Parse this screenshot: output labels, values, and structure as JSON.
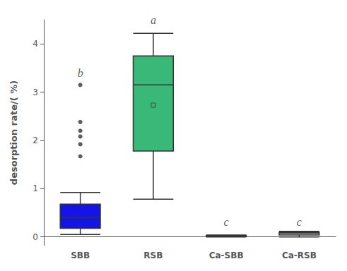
{
  "chart_data": {
    "type": "box",
    "categories": [
      "SBB",
      "RSB",
      "Ca-SBB",
      "Ca-RSB"
    ],
    "ylabel": "desorption rate/( %)",
    "ylim": [
      -0.18,
      4.5
    ],
    "yticks": [
      0,
      1,
      2,
      3,
      4
    ],
    "grid": false,
    "colors": [
      "#1414e6",
      "#3ab878",
      "white",
      "white"
    ],
    "whislo": [
      0.05,
      0.78,
      0.0,
      0.0
    ],
    "q1": [
      0.18,
      1.78,
      0.01,
      0.038
    ],
    "median": [
      0.4,
      3.15,
      0.022,
      0.068
    ],
    "q3": [
      0.68,
      3.75,
      0.03,
      0.095
    ],
    "whishi": [
      0.92,
      4.22,
      0.038,
      0.115
    ],
    "means": [
      null,
      2.73,
      null,
      null
    ],
    "fliers": [
      [
        1.67,
        1.92,
        2.08,
        2.2,
        2.38,
        3.15
      ],
      [],
      [],
      []
    ],
    "annotations": [
      {
        "text": "b",
        "category": "SBB",
        "y": 3.28
      },
      {
        "text": "a",
        "category": "RSB",
        "y": 4.38
      },
      {
        "text": "c",
        "category": "Ca-SBB",
        "y": 0.2
      },
      {
        "text": "c",
        "category": "Ca-RSB",
        "y": 0.2
      }
    ]
  }
}
